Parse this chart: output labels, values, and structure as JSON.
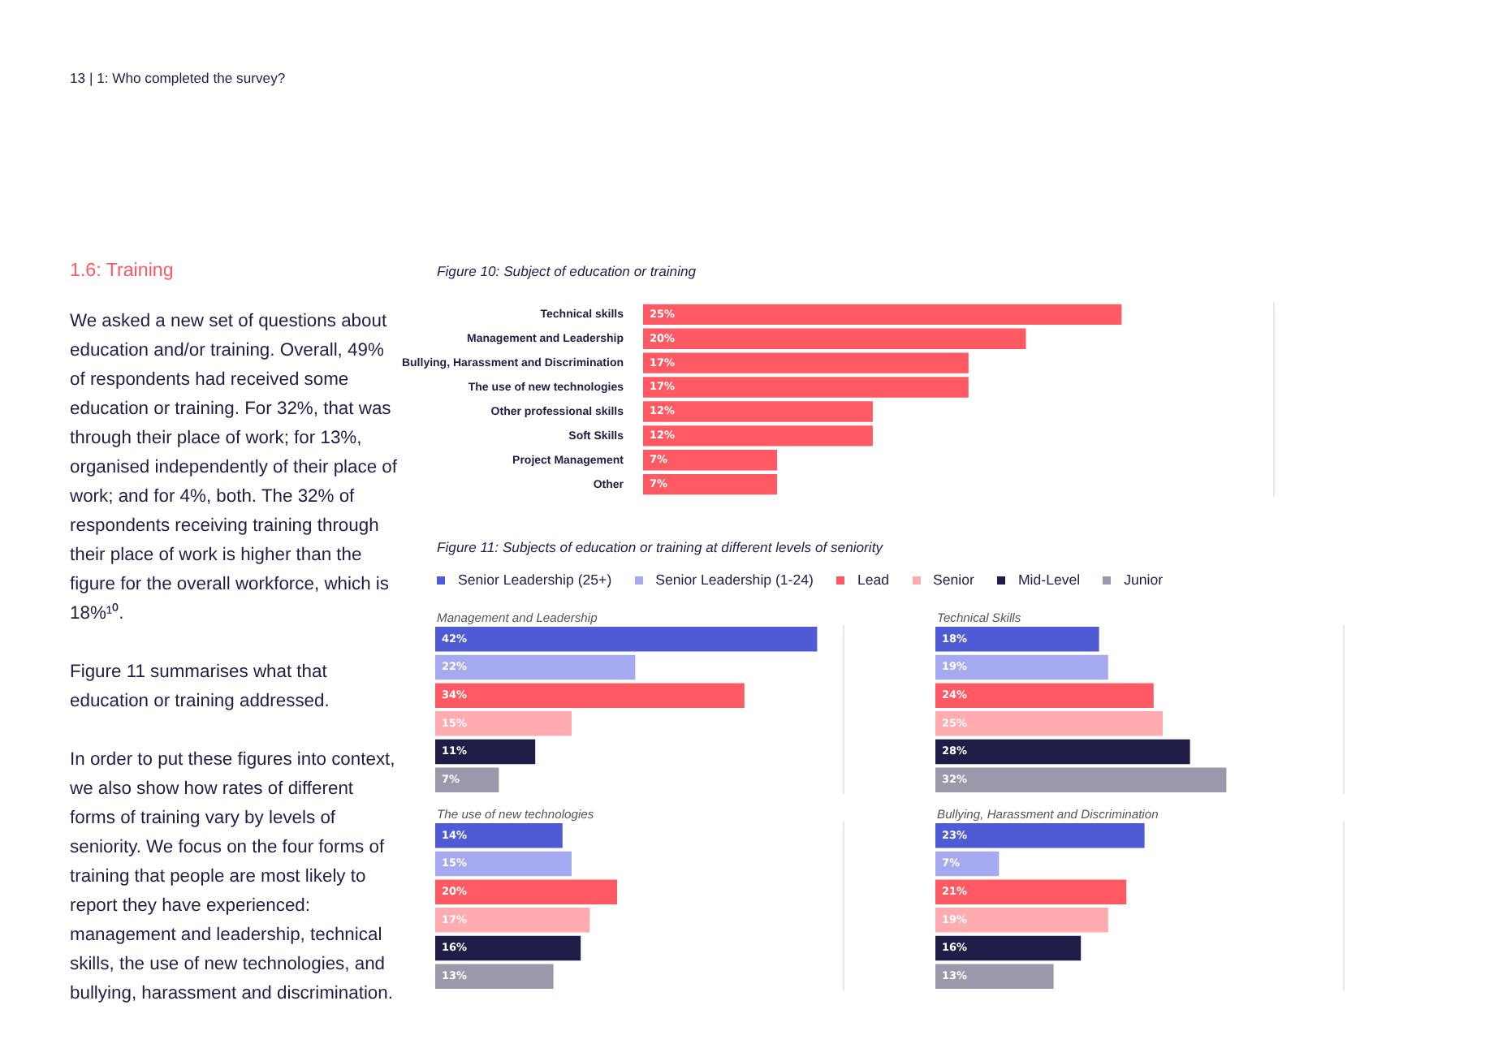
{
  "chart_data": [
    {
      "type": "other",
      "title": "1.6: Training",
      "annotations": [
        "13 | 1: Who completed the survey?",
        "We asked a new set of questions about education and/or training. Overall, 49% of respondents had received some education or training. For 32%, that was through their place of work; for 13%, organised independently of their place of work; and for 4%, both. The 32% of respondents receiving training through their place of work is higher than the figure for the overall workforce, which is 18%¹⁰.",
        "Figure 11 summarises what that education or training addressed.",
        "In order to put these figures into context, we also show how rates of different forms of training vary by levels of seniority. We focus on the four forms of training that people are most likely to report they have experienced: management and leadership, technical skills, the use of new technologies, and bullying, harassment and discrimination."
      ]
    },
    {
      "type": "bar",
      "orientation": "horizontal",
      "title": "Figure 10: Subject of education or training",
      "categories": [
        "Technical skills",
        "Management and Leadership",
        "Bullying, Harassment and Discrimination",
        "The use of new technologies",
        "Other professional skills",
        "Soft Skills",
        "Project Management",
        "Other"
      ],
      "values": [
        25,
        20,
        17,
        17,
        12,
        12,
        7,
        7
      ],
      "value_labels": [
        "25%",
        "20%",
        "17%",
        "17%",
        "12%",
        "12%",
        "7%",
        "7%"
      ],
      "color": "#ff5a64",
      "xlim": [
        0,
        33
      ]
    },
    {
      "type": "bar",
      "orientation": "horizontal",
      "title": "Figure 11: Subjects of education or training at different levels of seniority",
      "subtitle": "Management and Leadership",
      "legend": "top",
      "categories": [
        null
      ],
      "xlim": [
        0,
        45
      ],
      "series": [
        {
          "name": "Senior Leadership (25+)",
          "color": "#4f5bd5",
          "values": [
            42
          ],
          "value_labels": [
            "42%"
          ]
        },
        {
          "name": "Senior Leadership (1-24)",
          "color": "#a5a9f0",
          "values": [
            22
          ],
          "value_labels": [
            "22%"
          ]
        },
        {
          "name": "Lead",
          "color": "#ff5a64",
          "values": [
            34
          ],
          "value_labels": [
            "34%"
          ]
        },
        {
          "name": "Senior",
          "color": "#ffabb0",
          "values": [
            15
          ],
          "value_labels": [
            "15%"
          ]
        },
        {
          "name": "Mid-Level",
          "color": "#1f1d47",
          "values": [
            11
          ],
          "value_labels": [
            "11%"
          ]
        },
        {
          "name": "Junior",
          "color": "#9a98ab",
          "values": [
            7
          ],
          "value_labels": [
            "7%"
          ]
        }
      ]
    },
    {
      "type": "bar",
      "orientation": "horizontal",
      "title": "Technical Skills",
      "categories": [
        null
      ],
      "xlim": [
        0,
        45
      ],
      "series": [
        {
          "color": "#4f5bd5",
          "values": [
            18
          ],
          "value_labels": [
            "18%"
          ]
        },
        {
          "color": "#a5a9f0",
          "values": [
            19
          ],
          "value_labels": [
            "19%"
          ]
        },
        {
          "color": "#ff5a64",
          "values": [
            24
          ],
          "value_labels": [
            "24%"
          ]
        },
        {
          "color": "#ffabb0",
          "values": [
            25
          ],
          "value_labels": [
            "25%"
          ]
        },
        {
          "color": "#1f1d47",
          "values": [
            28
          ],
          "value_labels": [
            "28%"
          ]
        },
        {
          "color": "#9a98ab",
          "values": [
            32
          ],
          "value_labels": [
            "32%"
          ]
        }
      ]
    },
    {
      "type": "bar",
      "orientation": "horizontal",
      "title": "The use of new technologies",
      "categories": [
        null
      ],
      "xlim": [
        0,
        45
      ],
      "series": [
        {
          "color": "#4f5bd5",
          "values": [
            14
          ],
          "value_labels": [
            "14%"
          ]
        },
        {
          "color": "#a5a9f0",
          "values": [
            15
          ],
          "value_labels": [
            "15%"
          ]
        },
        {
          "color": "#ff5a64",
          "values": [
            20
          ],
          "value_labels": [
            "20%"
          ]
        },
        {
          "color": "#ffabb0",
          "values": [
            17
          ],
          "value_labels": [
            "17%"
          ]
        },
        {
          "color": "#1f1d47",
          "values": [
            16
          ],
          "value_labels": [
            "16%"
          ]
        },
        {
          "color": "#9a98ab",
          "values": [
            13
          ],
          "value_labels": [
            "13%"
          ]
        }
      ]
    },
    {
      "type": "bar",
      "orientation": "horizontal",
      "title": "Bullying, Harassment and Discrimination",
      "categories": [
        null
      ],
      "xlim": [
        0,
        45
      ],
      "series": [
        {
          "color": "#4f5bd5",
          "values": [
            23
          ],
          "value_labels": [
            "23%"
          ]
        },
        {
          "color": "#a5a9f0",
          "values": [
            7
          ],
          "value_labels": [
            "7%"
          ]
        },
        {
          "color": "#ff5a64",
          "values": [
            21
          ],
          "value_labels": [
            "21%"
          ]
        },
        {
          "color": "#ffabb0",
          "values": [
            19
          ],
          "value_labels": [
            "19%"
          ]
        },
        {
          "color": "#1f1d47",
          "values": [
            16
          ],
          "value_labels": [
            "16%"
          ]
        },
        {
          "color": "#9a98ab",
          "values": [
            13
          ],
          "value_labels": [
            "13%"
          ]
        }
      ]
    }
  ]
}
